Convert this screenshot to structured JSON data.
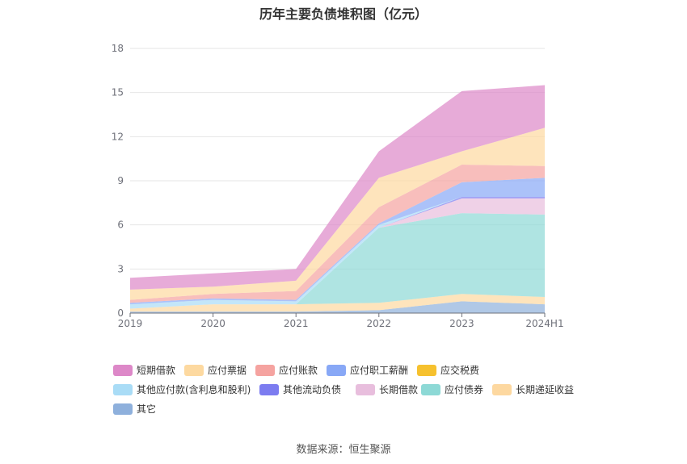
{
  "chart_data": {
    "type": "area",
    "stacked": true,
    "title": "历年主要负债堆积图（亿元）",
    "categories": [
      "2019",
      "2020",
      "2021",
      "2022",
      "2023",
      "2024H1"
    ],
    "ylim": [
      0,
      18
    ],
    "yticks": [
      0,
      3,
      6,
      9,
      12,
      15,
      18
    ],
    "grid": true,
    "legend_position": "bottom",
    "series": [
      {
        "name": "其它",
        "color": "#8eb0dc",
        "values": [
          0.1,
          0.1,
          0.1,
          0.2,
          0.8,
          0.6
        ]
      },
      {
        "name": "长期递延收益",
        "color": "#fdd8a0",
        "values": [
          0.2,
          0.5,
          0.5,
          0.5,
          0.5,
          0.5
        ]
      },
      {
        "name": "应付债券",
        "color": "#8dd9d6",
        "values": [
          0,
          0,
          0,
          5.1,
          5.5,
          5.6
        ]
      },
      {
        "name": "长期借款",
        "color": "#e8bedd",
        "values": [
          0,
          0,
          0,
          0,
          1.0,
          1.1
        ]
      },
      {
        "name": "其他流动负债",
        "color": "#7c7cf0",
        "values": [
          0,
          0,
          0,
          0,
          0.1,
          0.1
        ]
      },
      {
        "name": "其他应付款(含利息和股利)",
        "color": "#a9dcf6",
        "values": [
          0.3,
          0.3,
          0.2,
          0.2,
          0,
          0
        ]
      },
      {
        "name": "应交税费",
        "color": "#f6c12e",
        "values": [
          0,
          0,
          0,
          0,
          0,
          0
        ]
      },
      {
        "name": "应付职工薪酬",
        "color": "#88a8f6",
        "values": [
          0.1,
          0.1,
          0.1,
          0.1,
          1.0,
          1.3
        ]
      },
      {
        "name": "应付账款",
        "color": "#f5a3a0",
        "values": [
          0.2,
          0.3,
          0.6,
          1.1,
          1.2,
          0.8
        ]
      },
      {
        "name": "应付票据",
        "color": "#fdd9a0",
        "values": [
          0.7,
          0.5,
          0.7,
          2.0,
          0.9,
          2.6
        ]
      },
      {
        "name": "短期借款",
        "color": "#dd88c8",
        "values": [
          0.8,
          0.9,
          0.8,
          1.8,
          4.1,
          2.9
        ]
      }
    ],
    "legend_order": [
      "短期借款",
      "应付票据",
      "应付账款",
      "应付职工薪酬",
      "应交税费",
      "其他应付款(含利息和股利)",
      "其他流动负债",
      "长期借款",
      "应付债券",
      "长期递延收益",
      "其它"
    ]
  },
  "source": "数据来源：恒生聚源"
}
